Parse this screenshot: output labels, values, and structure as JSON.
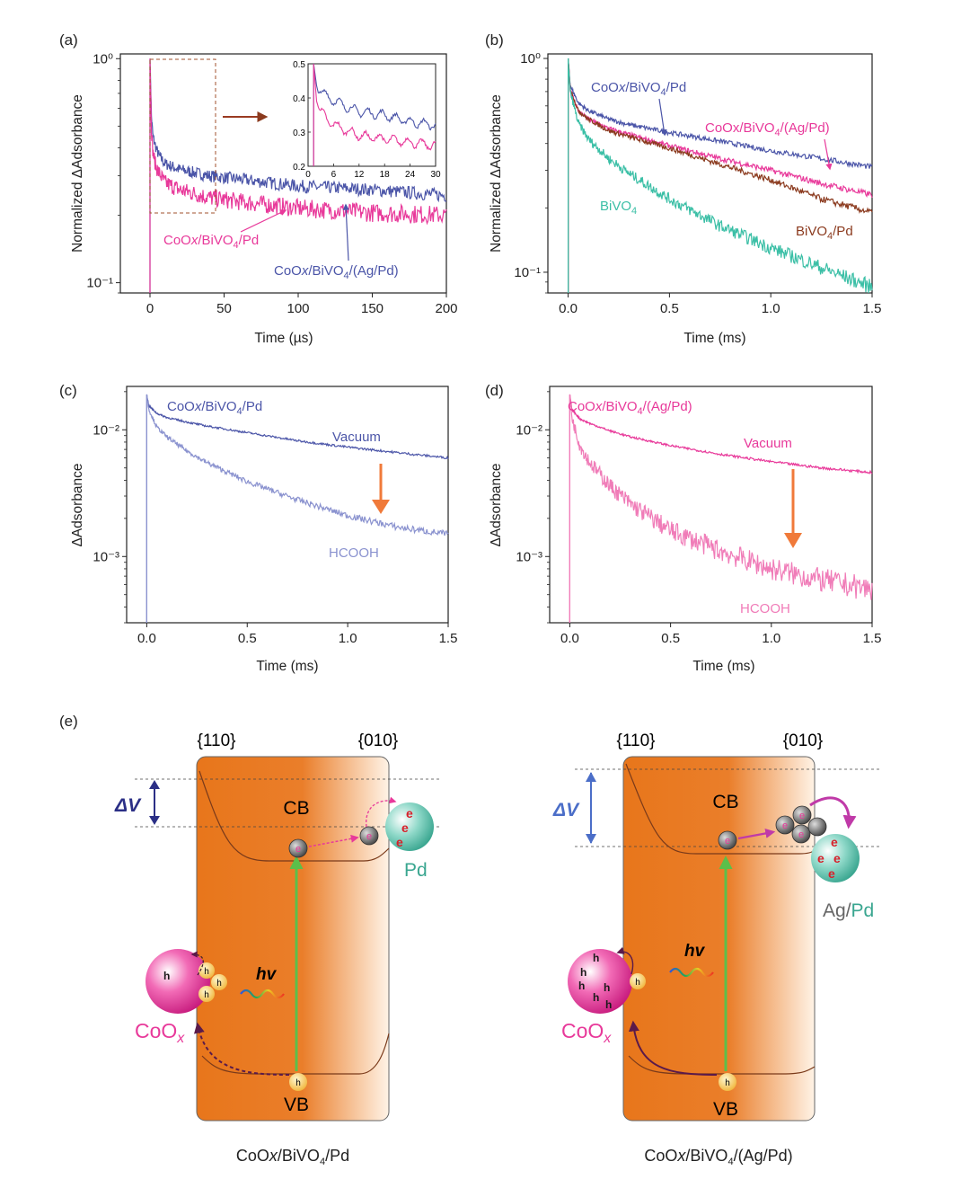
{
  "panel_labels": [
    "(a)",
    "(b)",
    "(c)",
    "(d)",
    "(e)"
  ],
  "colors": {
    "blue": "#4b55a8",
    "magenta": "#e8399a",
    "brown": "#8b3a1e",
    "teal": "#3bbfa6",
    "lightblue": "#8a92cf",
    "pink": "#f07cb8",
    "arrow_orange": "#f07a3a",
    "arrow_brown": "#9a3b22",
    "band_orange": "#e8761b",
    "pd_teal": "#5ec4b0",
    "coox_pink": "#e8399a"
  },
  "chart_data": [
    {
      "panel": "(a)",
      "type": "line",
      "xlabel": "Time (µs)",
      "ylabel": "Normalized ΔAdsorbance",
      "xscale": "linear",
      "yscale": "log",
      "xlim": [
        -20,
        200
      ],
      "ylim": [
        0.09,
        1.05
      ],
      "xticks": [
        0,
        50,
        100,
        150,
        200
      ],
      "xtick_labels": [
        "0",
        "50",
        "100",
        "150",
        "200"
      ],
      "yticks": [
        0.1,
        1
      ],
      "ytick_labels": [
        "10⁻¹",
        "10⁰"
      ],
      "series": [
        {
          "name": "CoOx/BiVO4/(Ag/Pd)",
          "color": "#4b55a8",
          "x": [
            0,
            1,
            2,
            4,
            6,
            10,
            20,
            40,
            60,
            100,
            150,
            200
          ],
          "y": [
            1.0,
            0.55,
            0.45,
            0.4,
            0.37,
            0.34,
            0.32,
            0.3,
            0.29,
            0.27,
            0.26,
            0.245
          ]
        },
        {
          "name": "CoOx/BiVO4/Pd",
          "color": "#e8399a",
          "x": [
            0,
            1,
            2,
            4,
            6,
            10,
            20,
            40,
            60,
            100,
            150,
            200
          ],
          "y": [
            1.0,
            0.48,
            0.38,
            0.33,
            0.31,
            0.28,
            0.26,
            0.24,
            0.23,
            0.215,
            0.205,
            0.2
          ]
        }
      ],
      "annotations": [
        {
          "text_parts": [
            [
              "CoO",
              ""
            ],
            [
              "x",
              "i"
            ],
            [
              "/BiVO",
              ""
            ],
            [
              "4",
              "sub"
            ],
            [
              "/Pd",
              ""
            ]
          ],
          "color": "#e8399a"
        },
        {
          "text_parts": [
            [
              "CoO",
              ""
            ],
            [
              "x",
              "i"
            ],
            [
              "/BiVO",
              ""
            ],
            [
              "4",
              "sub"
            ],
            [
              "/(Ag/Pd)",
              ""
            ]
          ],
          "color": "#4b55a8"
        }
      ],
      "inset": {
        "xlim": [
          0,
          30
        ],
        "ylim": [
          0.2,
          0.5
        ],
        "xticks": [
          0,
          6,
          12,
          18,
          24,
          30
        ],
        "xtick_labels": [
          "0",
          "6",
          "12",
          "18",
          "24",
          "30"
        ],
        "yticks": [
          0.2,
          0.3,
          0.4,
          0.5
        ],
        "ytick_labels": [
          "0.2",
          "0.3",
          "0.4",
          "0.5"
        ],
        "series": [
          {
            "name": "CoOx/BiVO4/(Ag/Pd)",
            "color": "#4b55a8",
            "x": [
              0,
              1,
              2,
              3,
              5,
              8,
              12,
              18,
              24,
              30
            ],
            "y": [
              0.5,
              0.5,
              0.44,
              0.42,
              0.4,
              0.38,
              0.36,
              0.35,
              0.33,
              0.32
            ]
          },
          {
            "name": "CoOx/BiVO4/Pd",
            "color": "#e8399a",
            "x": [
              0,
              1,
              2,
              3,
              5,
              8,
              12,
              18,
              24,
              30
            ],
            "y": [
              0.5,
              0.5,
              0.4,
              0.36,
              0.33,
              0.31,
              0.29,
              0.28,
              0.27,
              0.26
            ]
          }
        ]
      }
    },
    {
      "panel": "(b)",
      "type": "line",
      "xlabel": "Time (ms)",
      "ylabel": "Normalized ΔAdsorbance",
      "xscale": "linear",
      "yscale": "log",
      "xlim": [
        -0.1,
        1.5
      ],
      "ylim": [
        0.08,
        1.05
      ],
      "xticks": [
        0,
        0.5,
        1.0,
        1.5
      ],
      "xtick_labels": [
        "0.0",
        "0.5",
        "1.0",
        "1.5"
      ],
      "yticks": [
        0.1,
        1
      ],
      "ytick_labels": [
        "10⁻¹",
        "10⁰"
      ],
      "series": [
        {
          "name": "CoOx/BiVO4/Pd",
          "color": "#4b55a8",
          "x": [
            0,
            0.01,
            0.05,
            0.1,
            0.2,
            0.3,
            0.5,
            0.75,
            1.0,
            1.25,
            1.5
          ],
          "y": [
            1.0,
            0.75,
            0.62,
            0.57,
            0.52,
            0.49,
            0.45,
            0.41,
            0.37,
            0.34,
            0.31
          ]
        },
        {
          "name": "CoOx/BiVO4/(Ag/Pd)",
          "color": "#e8399a",
          "x": [
            0,
            0.01,
            0.05,
            0.1,
            0.2,
            0.3,
            0.5,
            0.75,
            1.0,
            1.25,
            1.5
          ],
          "y": [
            1.0,
            0.72,
            0.57,
            0.52,
            0.47,
            0.44,
            0.39,
            0.34,
            0.3,
            0.26,
            0.23
          ]
        },
        {
          "name": "BiVO4/Pd",
          "color": "#8b3a1e",
          "x": [
            0,
            0.01,
            0.05,
            0.1,
            0.2,
            0.3,
            0.5,
            0.75,
            1.0,
            1.25,
            1.5
          ],
          "y": [
            1.0,
            0.72,
            0.57,
            0.52,
            0.46,
            0.43,
            0.38,
            0.32,
            0.27,
            0.22,
            0.19
          ]
        },
        {
          "name": "BiVO4",
          "color": "#3bbfa6",
          "x": [
            0,
            0.01,
            0.05,
            0.1,
            0.2,
            0.3,
            0.5,
            0.75,
            1.0,
            1.25,
            1.5
          ],
          "y": [
            1.0,
            0.7,
            0.5,
            0.42,
            0.34,
            0.29,
            0.22,
            0.165,
            0.13,
            0.105,
            0.085
          ]
        }
      ],
      "annotations": [
        {
          "text_parts": [
            [
              "CoO",
              ""
            ],
            [
              "x",
              "i"
            ],
            [
              "/BiVO",
              ""
            ],
            [
              "4",
              "sub"
            ],
            [
              "/Pd",
              ""
            ]
          ],
          "color": "#4b55a8"
        },
        {
          "text_parts": [
            [
              "CoO",
              ""
            ],
            [
              "x",
              ""
            ],
            [
              "/BiVO",
              ""
            ],
            [
              "4",
              "sub"
            ],
            [
              "/(Ag/Pd)",
              ""
            ]
          ],
          "color": "#e8399a"
        },
        {
          "text_parts": [
            [
              "BiVO",
              ""
            ],
            [
              "4",
              "sub"
            ],
            [
              "/Pd",
              ""
            ]
          ],
          "color": "#8b3a1e"
        },
        {
          "text_parts": [
            [
              "BiVO",
              ""
            ],
            [
              "4",
              "sub"
            ]
          ],
          "color": "#3bbfa6"
        }
      ]
    },
    {
      "panel": "(c)",
      "type": "line",
      "xlabel": "Time (ms)",
      "ylabel": "ΔAdsorbance",
      "xscale": "linear",
      "yscale": "log",
      "xlim": [
        -0.1,
        1.5
      ],
      "ylim": [
        0.0003,
        0.022
      ],
      "xticks": [
        0,
        0.5,
        1.0,
        1.5
      ],
      "xtick_labels": [
        "0.0",
        "0.5",
        "1.0",
        "1.5"
      ],
      "yticks": [
        0.001,
        0.01
      ],
      "ytick_labels": [
        "10⁻³",
        "10⁻²"
      ],
      "series": [
        {
          "name": "Vacuum",
          "color": "#4b55a8",
          "x": [
            0,
            0.01,
            0.05,
            0.1,
            0.2,
            0.3,
            0.5,
            0.75,
            1.0,
            1.25,
            1.5
          ],
          "y": [
            0.019,
            0.0155,
            0.0135,
            0.0125,
            0.0115,
            0.0107,
            0.0095,
            0.0082,
            0.0073,
            0.0066,
            0.006
          ]
        },
        {
          "name": "HCOOH",
          "color": "#8a92cf",
          "x": [
            0,
            0.01,
            0.05,
            0.1,
            0.2,
            0.3,
            0.5,
            0.75,
            1.0,
            1.25,
            1.5
          ],
          "y": [
            0.019,
            0.0145,
            0.0105,
            0.0088,
            0.0068,
            0.0055,
            0.0039,
            0.0028,
            0.0021,
            0.0017,
            0.0015
          ]
        }
      ],
      "annotations": [
        {
          "text_parts": [
            [
              "CoO",
              ""
            ],
            [
              "x",
              "i"
            ],
            [
              "/BiVO",
              ""
            ],
            [
              "4",
              "sub"
            ],
            [
              "/Pd",
              ""
            ]
          ],
          "color": "#4b55a8"
        },
        {
          "text_parts": [
            [
              "Vacuum",
              ""
            ]
          ],
          "color": "#4b55a8"
        },
        {
          "text_parts": [
            [
              "HCOOH",
              ""
            ]
          ],
          "color": "#8a92cf"
        }
      ]
    },
    {
      "panel": "(d)",
      "type": "line",
      "xlabel": "Time (ms)",
      "ylabel": "ΔAdsorbance",
      "xscale": "linear",
      "yscale": "log",
      "xlim": [
        -0.1,
        1.5
      ],
      "ylim": [
        0.0003,
        0.022
      ],
      "xticks": [
        0,
        0.5,
        1.0,
        1.5
      ],
      "xtick_labels": [
        "0.0",
        "0.5",
        "1.0",
        "1.5"
      ],
      "yticks": [
        0.001,
        0.01
      ],
      "ytick_labels": [
        "10⁻³",
        "10⁻²"
      ],
      "series": [
        {
          "name": "Vacuum",
          "color": "#e8399a",
          "x": [
            0,
            0.01,
            0.05,
            0.1,
            0.2,
            0.3,
            0.5,
            0.75,
            1.0,
            1.25,
            1.5
          ],
          "y": [
            0.019,
            0.0145,
            0.0122,
            0.0112,
            0.0098,
            0.0088,
            0.0075,
            0.0064,
            0.0056,
            0.005,
            0.0046
          ]
        },
        {
          "name": "HCOOH",
          "color": "#f07cb8",
          "x": [
            0,
            0.01,
            0.05,
            0.1,
            0.2,
            0.3,
            0.5,
            0.75,
            1.0,
            1.25,
            1.5
          ],
          "y": [
            0.019,
            0.0125,
            0.0075,
            0.0055,
            0.0036,
            0.0026,
            0.0016,
            0.0011,
            0.0008,
            0.00065,
            0.00055
          ]
        }
      ],
      "annotations": [
        {
          "text_parts": [
            [
              "CoO",
              ""
            ],
            [
              "x",
              "i"
            ],
            [
              "/BiVO",
              ""
            ],
            [
              "4",
              "sub"
            ],
            [
              "/(Ag/Pd)",
              ""
            ]
          ],
          "color": "#e8399a"
        },
        {
          "text_parts": [
            [
              "Vacuum",
              ""
            ]
          ],
          "color": "#e8399a"
        },
        {
          "text_parts": [
            [
              "HCOOH",
              ""
            ]
          ],
          "color": "#f07cb8"
        }
      ]
    }
  ],
  "schematic": {
    "left": {
      "facet_left": "{110}",
      "facet_right": "{010}",
      "delta_v": "ΔV",
      "cb": "CB",
      "vb": "VB",
      "hv": "hv",
      "metal": "Pd",
      "oxide_base": "CoO",
      "oxide_sub": "x",
      "electron": "e",
      "hole": "h",
      "caption_parts": [
        [
          "CoO",
          ""
        ],
        [
          "x",
          "i"
        ],
        [
          "/BiVO",
          ""
        ],
        [
          "4",
          "sub"
        ],
        [
          "/Pd",
          ""
        ]
      ]
    },
    "right": {
      "facet_left": "{110}",
      "facet_right": "{010}",
      "delta_v": "ΔV",
      "cb": "CB",
      "vb": "VB",
      "hv": "hv",
      "metal_a": "Ag",
      "metal_sep": "/",
      "metal_b": "Pd",
      "oxide_base": "CoO",
      "oxide_sub": "x",
      "electron": "e",
      "hole": "h",
      "caption_parts": [
        [
          "CoO",
          ""
        ],
        [
          "x",
          "i"
        ],
        [
          "/BiVO",
          ""
        ],
        [
          "4",
          "sub"
        ],
        [
          "/(Ag/Pd)",
          ""
        ]
      ]
    }
  }
}
